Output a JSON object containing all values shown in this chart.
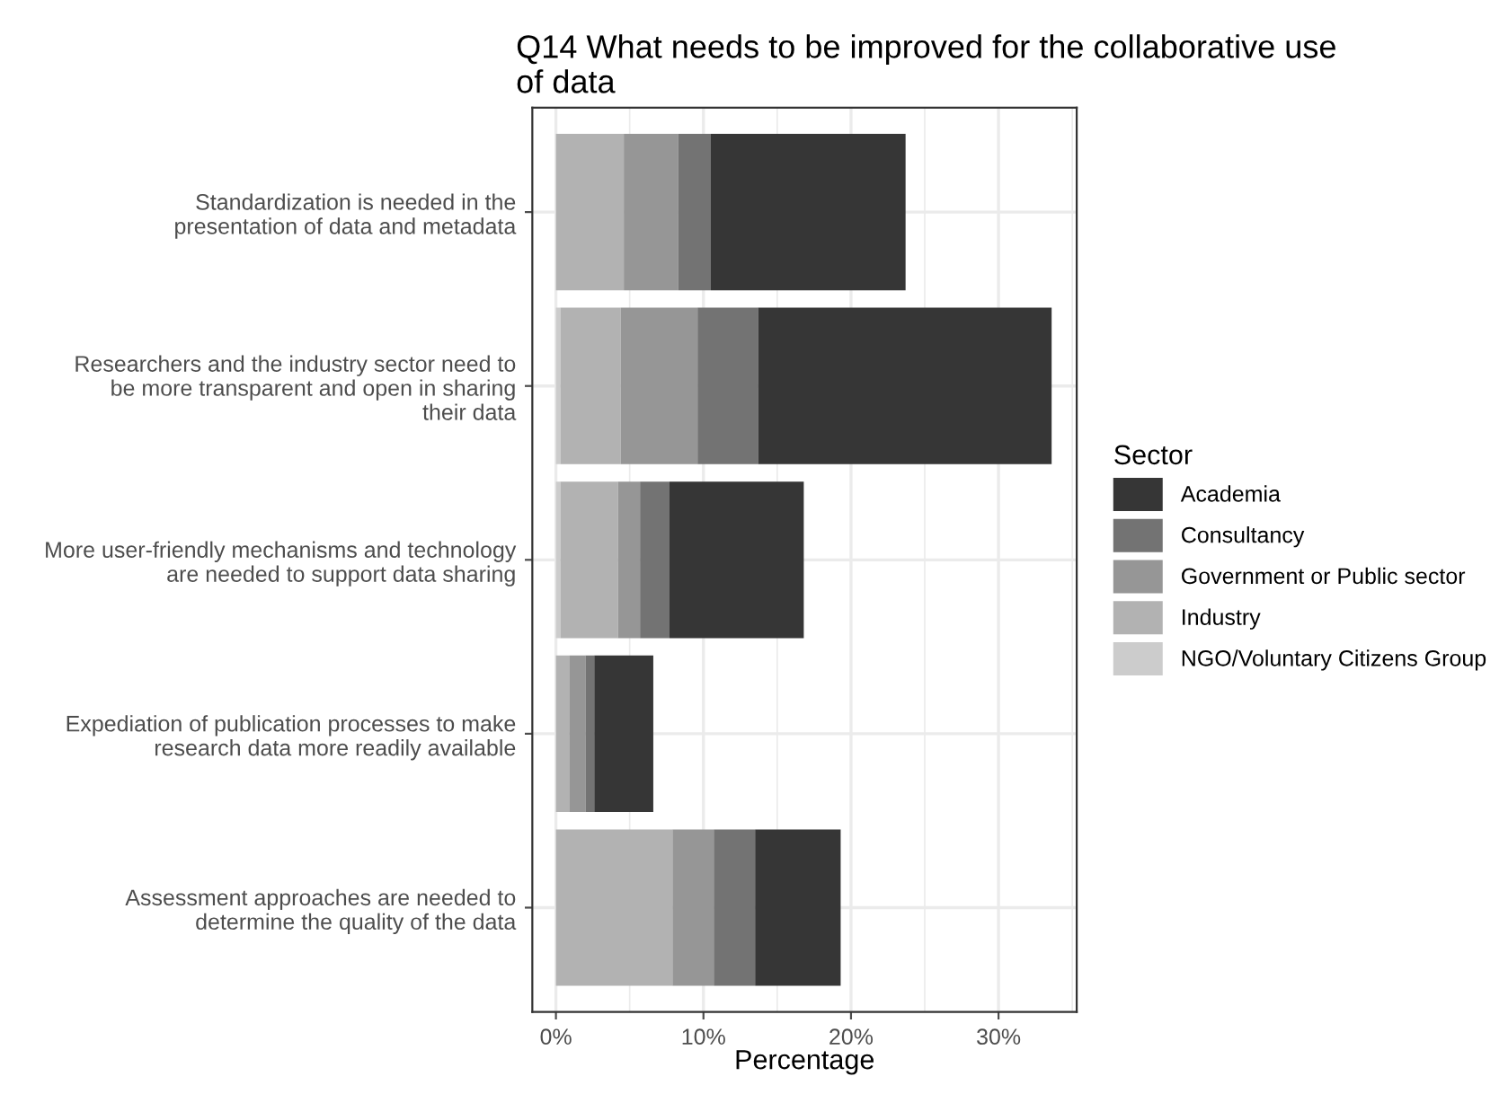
{
  "chart_data": {
    "type": "bar",
    "orientation": "horizontal",
    "stacked": true,
    "title": "Q14 What needs to be improved for the collaborative use\nof data",
    "xlabel": "Percentage",
    "legend_title": "Sector",
    "legend": "right",
    "grid": true,
    "categories": [
      "Standardization is needed in the\npresentation of data and metadata",
      "Researchers and the industry sector need to\nbe more transparent and open in sharing\ntheir data",
      "More user-friendly mechanisms and technology\nare needed to support data sharing",
      "Expediation of publication processes to make\nresearch data more readily available",
      "Assessment approaches are needed to\ndetermine the quality of the data"
    ],
    "xlim": [
      -1.6,
      35.3
    ],
    "xticks": [
      {
        "value": 0,
        "label": "0%"
      },
      {
        "value": 10,
        "label": "10%"
      },
      {
        "value": 20,
        "label": "20%"
      },
      {
        "value": 30,
        "label": "30%"
      }
    ],
    "series": [
      {
        "name": "NGO/Voluntary Citizens Group",
        "color": "#cccccc",
        "values": [
          0,
          0.3,
          0.3,
          0,
          0
        ]
      },
      {
        "name": "Industry",
        "color": "#b2b2b2",
        "values": [
          4.6,
          4.1,
          3.9,
          0.9,
          7.9
        ]
      },
      {
        "name": "Government or Public sector",
        "color": "#969696",
        "values": [
          3.7,
          5.2,
          1.5,
          1.1,
          2.8
        ]
      },
      {
        "name": "Consultancy",
        "color": "#737373",
        "values": [
          2.2,
          4.1,
          2.0,
          0.6,
          2.8
        ]
      },
      {
        "name": "Academia",
        "color": "#363636",
        "values": [
          13.2,
          19.9,
          9.1,
          4.0,
          5.8
        ]
      }
    ]
  }
}
